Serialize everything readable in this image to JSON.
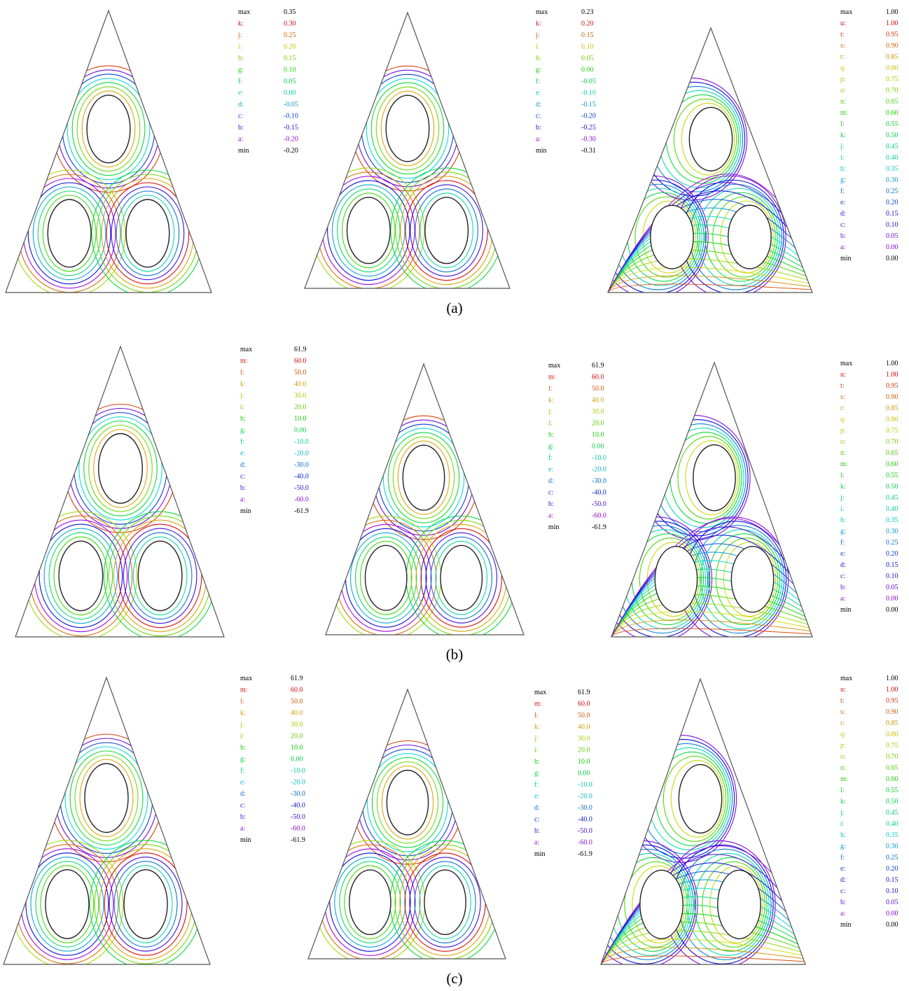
{
  "panels": [
    {
      "legend": [
        [
          "max",
          "0.35"
        ],
        [
          "k:",
          "0.30"
        ],
        [
          "j:",
          "0.25"
        ],
        [
          "i:",
          "0.20"
        ],
        [
          "h:",
          "0.15"
        ],
        [
          "g:",
          "0.10"
        ],
        [
          "f:",
          "0.05"
        ],
        [
          "e:",
          "0.00"
        ],
        [
          "d:",
          "-0.05"
        ],
        [
          "c:",
          "-0.10"
        ],
        [
          "b:",
          "-0.15"
        ],
        [
          "a:",
          "-0.20"
        ],
        [
          "min",
          "-0.20"
        ]
      ]
    },
    {
      "legend": [
        [
          "max",
          "0.23"
        ],
        [
          "k:",
          "0.20"
        ],
        [
          "j:",
          "0.15"
        ],
        [
          "i:",
          "0.10"
        ],
        [
          "h:",
          "0.05"
        ],
        [
          "g:",
          "0.00"
        ],
        [
          "f:",
          "-0.05"
        ],
        [
          "e:",
          "-0.10"
        ],
        [
          "d:",
          "-0.15"
        ],
        [
          "c:",
          "-0.20"
        ],
        [
          "b:",
          "-0.25"
        ],
        [
          "a:",
          "-0.30"
        ],
        [
          "min",
          "-0.31"
        ]
      ]
    },
    {
      "legend": [
        [
          "max",
          "1.00"
        ],
        [
          "u:",
          "1.00"
        ],
        [
          "t:",
          "0.95"
        ],
        [
          "s:",
          "0.90"
        ],
        [
          "r:",
          "0.85"
        ],
        [
          "q:",
          "0.80"
        ],
        [
          "p:",
          "0.75"
        ],
        [
          "o:",
          "0.70"
        ],
        [
          "n:",
          "0.65"
        ],
        [
          "m:",
          "0.60"
        ],
        [
          "l:",
          "0.55"
        ],
        [
          "k:",
          "0.50"
        ],
        [
          "j:",
          "0.45"
        ],
        [
          "i:",
          "0.40"
        ],
        [
          "h:",
          "0.35"
        ],
        [
          "g:",
          "0.30"
        ],
        [
          "f:",
          "0.25"
        ],
        [
          "e:",
          "0.20"
        ],
        [
          "d:",
          "0.15"
        ],
        [
          "c:",
          "0.10"
        ],
        [
          "b:",
          "0.05"
        ],
        [
          "a:",
          "0.00"
        ],
        [
          "min",
          "0.00"
        ]
      ]
    },
    {
      "legend": [
        [
          "max",
          "61.9"
        ],
        [
          "m:",
          "60.0"
        ],
        [
          "l:",
          "50.0"
        ],
        [
          "k:",
          "40.0"
        ],
        [
          "j:",
          "30.0"
        ],
        [
          "i:",
          "20.0"
        ],
        [
          "h:",
          "10.0"
        ],
        [
          "g:",
          "0.00"
        ],
        [
          "f:",
          "-10.0"
        ],
        [
          "e:",
          "-20.0"
        ],
        [
          "d:",
          "-30.0"
        ],
        [
          "c:",
          "-40.0"
        ],
        [
          "b:",
          "-50.0"
        ],
        [
          "a:",
          "-60.0"
        ],
        [
          "min",
          "-61.9"
        ]
      ]
    },
    {
      "legend": [
        [
          "max",
          "61.9"
        ],
        [
          "m:",
          "60.0"
        ],
        [
          "l:",
          "50.0"
        ],
        [
          "k:",
          "40.0"
        ],
        [
          "j:",
          "30.0"
        ],
        [
          "i:",
          "20.0"
        ],
        [
          "h:",
          "10.0"
        ],
        [
          "g:",
          "0.00"
        ],
        [
          "f:",
          "-10.0"
        ],
        [
          "e:",
          "-20.0"
        ],
        [
          "d:",
          "-30.0"
        ],
        [
          "c:",
          "-40.0"
        ],
        [
          "b:",
          "-50.0"
        ],
        [
          "a:",
          "-60.0"
        ],
        [
          "min",
          "-61.9"
        ]
      ]
    },
    {
      "legend": [
        [
          "max",
          "1.00"
        ],
        [
          "u:",
          "1.00"
        ],
        [
          "t:",
          "0.95"
        ],
        [
          "s:",
          "0.90"
        ],
        [
          "r:",
          "0.85"
        ],
        [
          "q:",
          "0.80"
        ],
        [
          "p:",
          "0.75"
        ],
        [
          "o:",
          "0.70"
        ],
        [
          "n:",
          "0.65"
        ],
        [
          "m:",
          "0.60"
        ],
        [
          "l:",
          "0.55"
        ],
        [
          "k:",
          "0.50"
        ],
        [
          "j:",
          "0.45"
        ],
        [
          "i:",
          "0.40"
        ],
        [
          "h:",
          "0.35"
        ],
        [
          "g:",
          "0.30"
        ],
        [
          "f:",
          "0.25"
        ],
        [
          "e:",
          "0.20"
        ],
        [
          "d:",
          "0.15"
        ],
        [
          "c:",
          "0.10"
        ],
        [
          "b:",
          "0.05"
        ],
        [
          "a:",
          "0.00"
        ],
        [
          "min",
          "0.00"
        ]
      ]
    },
    {
      "legend": [
        [
          "max",
          "61.9"
        ],
        [
          "m:",
          "60.0"
        ],
        [
          "l:",
          "50.0"
        ],
        [
          "k:",
          "40.0"
        ],
        [
          "j:",
          "30.0"
        ],
        [
          "i:",
          "20.0"
        ],
        [
          "h:",
          "10.0"
        ],
        [
          "g:",
          "0.00"
        ],
        [
          "f:",
          "-10.0"
        ],
        [
          "e:",
          "-20.0"
        ],
        [
          "d:",
          "-30.0"
        ],
        [
          "c:",
          "-40.0"
        ],
        [
          "b:",
          "-50.0"
        ],
        [
          "a:",
          "-60.0"
        ],
        [
          "min",
          "-61.9"
        ]
      ]
    },
    {
      "legend": [
        [
          "max",
          "61.9"
        ],
        [
          "m:",
          "60.0"
        ],
        [
          "l:",
          "50.0"
        ],
        [
          "k:",
          "40.0"
        ],
        [
          "j:",
          "30.0"
        ],
        [
          "i:",
          "20.0"
        ],
        [
          "h:",
          "10.0"
        ],
        [
          "g:",
          "0.00"
        ],
        [
          "f:",
          "-10.0"
        ],
        [
          "e:",
          "-20.0"
        ],
        [
          "d:",
          "-30.0"
        ],
        [
          "c:",
          "-40.0"
        ],
        [
          "b:",
          "-50.0"
        ],
        [
          "a:",
          "-60.0"
        ],
        [
          "min",
          "-61.9"
        ]
      ]
    },
    {
      "legend": [
        [
          "max",
          "1.00"
        ],
        [
          "u:",
          "1.00"
        ],
        [
          "t:",
          "0.95"
        ],
        [
          "s:",
          "0.90"
        ],
        [
          "r:",
          "0.85"
        ],
        [
          "q:",
          "0.80"
        ],
        [
          "p:",
          "0.75"
        ],
        [
          "o:",
          "0.70"
        ],
        [
          "n:",
          "0.65"
        ],
        [
          "m:",
          "0.60"
        ],
        [
          "l:",
          "0.55"
        ],
        [
          "k:",
          "0.50"
        ],
        [
          "j:",
          "0.45"
        ],
        [
          "i:",
          "0.40"
        ],
        [
          "h:",
          "0.35"
        ],
        [
          "g:",
          "0.30"
        ],
        [
          "f:",
          "0.25"
        ],
        [
          "e:",
          "0.20"
        ],
        [
          "d:",
          "0.15"
        ],
        [
          "c:",
          "0.10"
        ],
        [
          "b:",
          "0.05"
        ],
        [
          "a:",
          "0.00"
        ],
        [
          "min",
          "0.00"
        ]
      ]
    }
  ],
  "captions": [
    "(a)",
    "(b)",
    "(c)"
  ]
}
